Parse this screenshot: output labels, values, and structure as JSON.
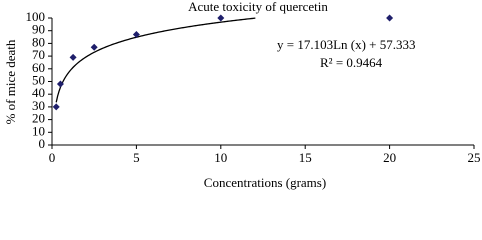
{
  "chart_data": {
    "type": "scatter",
    "title": "Acute toxicity of quercetin",
    "x_label": "Concentrations (grams)",
    "y_label": "% of mice death",
    "x": [
      0.25,
      0.5,
      1.25,
      2.5,
      5,
      10,
      20
    ],
    "values": [
      30,
      48,
      69,
      77,
      87,
      100,
      100
    ],
    "color": "#1f1f6b",
    "xlim": [
      0,
      25
    ],
    "xticks": [
      0,
      5,
      10,
      15,
      20,
      25
    ],
    "ylim": [
      0,
      100
    ],
    "yticks": [
      0,
      10,
      20,
      30,
      40,
      50,
      60,
      70,
      80,
      90,
      100
    ],
    "grid": false,
    "trendline": {
      "label": "y = 17.103Ln (x) + 57.333",
      "coefficients": [
        17.103,
        57.333
      ],
      "r2_label": "R² = 0.9464",
      "r2": 0.9464,
      "color": "#000000"
    }
  }
}
